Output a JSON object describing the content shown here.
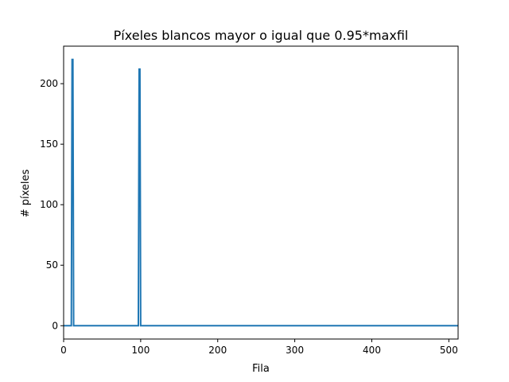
{
  "chart_data": {
    "type": "line",
    "title": "Píxeles blancos mayor o igual que 0.95*maxfil",
    "xlabel": "Fila",
    "ylabel": "# píxeles",
    "xlim": [
      0,
      512
    ],
    "ylim": [
      -11,
      231
    ],
    "xticks": [
      0,
      100,
      200,
      300,
      400,
      500
    ],
    "yticks": [
      0,
      50,
      100,
      150,
      200
    ],
    "grid": false,
    "line_color": "#1f77b4",
    "series": [
      {
        "x": [
          0,
          10,
          11,
          12,
          13,
          97,
          98,
          99,
          100,
          101,
          512
        ],
        "y": [
          0,
          0,
          220,
          220,
          0,
          0,
          212,
          212,
          0,
          0,
          0
        ]
      }
    ]
  }
}
